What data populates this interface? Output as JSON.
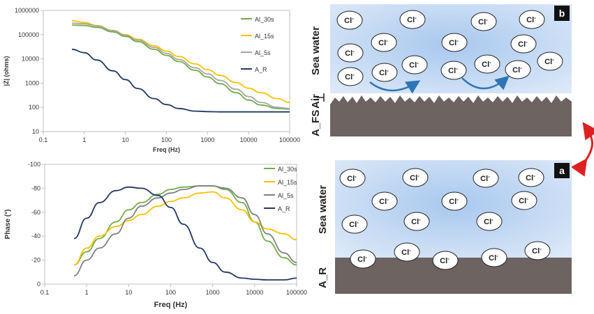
{
  "chart_data": [
    {
      "type": "line",
      "xlabel": "Freq (Hz)",
      "ylabel": "|Z| (ohms)",
      "xscale": "log",
      "yscale": "log",
      "xlim": [
        0.1,
        100000
      ],
      "ylim": [
        10,
        1000000
      ],
      "xticks": [
        0.1,
        1,
        10,
        100,
        1000,
        10000,
        100000
      ],
      "xtick_labels": [
        "0.1",
        "1",
        "10",
        "100",
        "1000",
        "10000",
        "100000"
      ],
      "yticks": [
        10,
        100,
        1000,
        10000,
        100000,
        1000000
      ],
      "ytick_labels": [
        "10",
        "100",
        "1000",
        "10000",
        "100000",
        "1000000"
      ],
      "grid": false,
      "legend": "top-right",
      "series": [
        {
          "name": "Al_30s",
          "color": "#70ad47",
          "x": [
            0.5,
            1,
            2,
            5,
            10,
            20,
            50,
            100,
            200,
            500,
            1000,
            2000,
            5000,
            10000,
            20000,
            50000,
            100000
          ],
          "y": [
            250000,
            240000,
            200000,
            130000,
            85000,
            52000,
            25000,
            14000,
            7800,
            3400,
            1800,
            950,
            400,
            200,
            125,
            90,
            85
          ]
        },
        {
          "name": "Al_15s",
          "color": "#ffc000",
          "x": [
            0.5,
            1,
            2,
            5,
            10,
            20,
            50,
            100,
            200,
            500,
            1000,
            2000,
            5000,
            10000,
            20000,
            50000,
            100000
          ],
          "y": [
            380000,
            320000,
            240000,
            150000,
            100000,
            65000,
            35000,
            21000,
            12500,
            6200,
            3600,
            2100,
            1050,
            620,
            400,
            230,
            160
          ]
        },
        {
          "name": "Al_5s",
          "color": "#a5a5a5",
          "x": [
            0.5,
            1,
            2,
            5,
            10,
            20,
            50,
            100,
            200,
            500,
            1000,
            2000,
            5000,
            10000,
            20000,
            50000,
            100000
          ],
          "y": [
            300000,
            280000,
            230000,
            145000,
            95000,
            60000,
            30000,
            17000,
            9500,
            4300,
            2400,
            1300,
            560,
            280,
            160,
            100,
            90
          ]
        },
        {
          "name": "A_R",
          "color": "#203864",
          "x": [
            0.5,
            1,
            2,
            5,
            10,
            20,
            50,
            100,
            200,
            500,
            1000,
            2000,
            5000,
            10000,
            20000,
            50000,
            100000
          ],
          "y": [
            25000,
            18000,
            9000,
            3200,
            1400,
            600,
            230,
            130,
            90,
            70,
            67,
            65,
            65,
            65,
            65,
            65,
            65
          ]
        }
      ]
    },
    {
      "type": "line",
      "xlabel": "Freq (Hz)",
      "ylabel": "Phase (°)",
      "xscale": "log",
      "xlim": [
        0.1,
        100000
      ],
      "ylim": [
        0,
        -100
      ],
      "xticks": [
        0.1,
        1,
        10,
        100,
        1000,
        10000,
        100000
      ],
      "xtick_labels": [
        "0.1",
        "1",
        "10",
        "100",
        "1000",
        "10000",
        "100000"
      ],
      "yticks": [
        0,
        -20,
        -40,
        -60,
        -80,
        -100
      ],
      "ytick_labels": [
        "0",
        "-20",
        "-40",
        "-60",
        "-80",
        "-100"
      ],
      "grid": false,
      "legend": "top-right",
      "series": [
        {
          "name": "Al_30s",
          "color": "#70ad47",
          "x": [
            0.5,
            1,
            2,
            5,
            10,
            20,
            50,
            100,
            200,
            500,
            1000,
            2000,
            5000,
            10000,
            20000,
            50000,
            100000
          ],
          "y": [
            -16,
            -27,
            -38,
            -52,
            -62,
            -68,
            -75,
            -79,
            -81,
            -82,
            -82,
            -79,
            -68,
            -52,
            -36,
            -22,
            -16
          ]
        },
        {
          "name": "Al_15s",
          "color": "#ffc000",
          "x": [
            0.5,
            1,
            2,
            5,
            10,
            20,
            50,
            100,
            200,
            500,
            1000,
            2000,
            5000,
            10000,
            20000,
            50000,
            100000
          ],
          "y": [
            -16,
            -30,
            -40,
            -48,
            -53,
            -58,
            -65,
            -69,
            -72,
            -76,
            -77,
            -72,
            -62,
            -52,
            -46,
            -42,
            -37
          ]
        },
        {
          "name": "Al_5s",
          "color": "#7f7f7f",
          "x": [
            0.5,
            1,
            2,
            5,
            10,
            20,
            50,
            100,
            200,
            500,
            1000,
            2000,
            5000,
            10000,
            20000,
            50000,
            100000
          ],
          "y": [
            -7,
            -20,
            -30,
            -42,
            -55,
            -65,
            -72,
            -76,
            -79,
            -82,
            -82,
            -80,
            -72,
            -58,
            -42,
            -26,
            -18
          ]
        },
        {
          "name": "A_R",
          "color": "#203864",
          "x": [
            0.5,
            1,
            2,
            5,
            10,
            20,
            50,
            100,
            200,
            500,
            1000,
            2000,
            5000,
            10000,
            20000,
            50000,
            100000
          ],
          "y": [
            -38,
            -55,
            -68,
            -78,
            -81,
            -80,
            -74,
            -64,
            -50,
            -30,
            -18,
            -10,
            -5,
            -4,
            -3.5,
            -3.5,
            -5
          ]
        }
      ]
    }
  ],
  "schematic": {
    "panel_b": {
      "letter": "b",
      "medium_label": "Sea water",
      "air_label": "Air",
      "substrate_label": "A_FS",
      "ion_label": "Cl",
      "ion_charge": "-",
      "water_color": "#c9ddf3",
      "substrate_color": "#6d6361",
      "arrow_color": "#2e75b6"
    },
    "panel_a": {
      "letter": "a",
      "medium_label": "Sea water",
      "substrate_label": "A_R",
      "ion_label": "Cl",
      "ion_charge": "-",
      "water_color": "#c9ddf3",
      "substrate_color": "#6d6361"
    },
    "link_arrow_color": "#e02020"
  }
}
